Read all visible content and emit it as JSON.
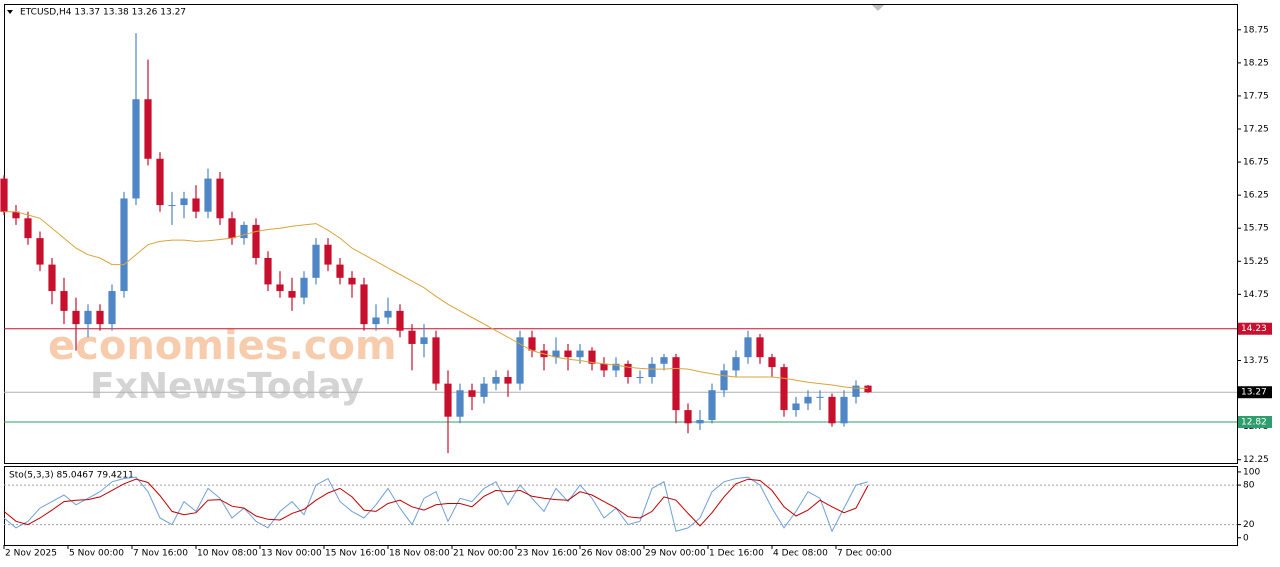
{
  "chart_data": [
    {
      "type": "candlestick",
      "title": "ETCUSD,H4  13.37 13.38 13.26 13.27",
      "x": [
        0,
        3,
        6,
        9,
        12,
        15,
        18,
        21,
        24,
        27,
        30,
        33,
        36,
        39,
        42,
        45,
        48,
        51,
        54,
        57,
        60,
        63,
        66,
        69,
        72,
        75,
        78,
        81,
        84,
        87,
        90,
        93,
        96,
        99,
        102,
        105,
        108,
        111,
        114,
        117,
        120,
        123,
        126,
        129,
        132,
        135,
        138,
        141,
        144,
        147,
        150,
        153,
        156,
        159,
        162,
        165,
        168,
        171,
        174,
        177,
        180,
        183,
        186,
        189,
        192,
        195,
        198,
        201,
        204,
        207,
        210,
        213,
        216
      ],
      "open": [
        16.5,
        16.0,
        15.9,
        15.6,
        15.2,
        14.8,
        14.5,
        14.3,
        14.5,
        14.3,
        14.8,
        16.2,
        17.7,
        16.8,
        16.1,
        16.1,
        16.2,
        16.0,
        16.5,
        15.9,
        15.6,
        15.8,
        15.3,
        14.9,
        14.8,
        14.7,
        15.0,
        15.5,
        15.2,
        15.0,
        14.9,
        14.3,
        14.4,
        14.5,
        14.2,
        14.0,
        14.1,
        13.4,
        12.9,
        13.3,
        13.2,
        13.4,
        13.5,
        13.4,
        14.1,
        13.9,
        13.8,
        13.9,
        13.8,
        13.9,
        13.7,
        13.6,
        13.7,
        13.5,
        13.5,
        13.7,
        13.8,
        13.0,
        12.8,
        12.85,
        13.3,
        13.6,
        13.8,
        14.1,
        13.8,
        13.65,
        13.0,
        13.1,
        13.2,
        13.2,
        12.8,
        13.2,
        13.37
      ],
      "high": [
        16.55,
        16.1,
        16.0,
        15.7,
        15.3,
        15.0,
        14.7,
        14.6,
        14.6,
        14.9,
        16.3,
        18.7,
        18.3,
        16.9,
        16.3,
        16.3,
        16.4,
        16.65,
        16.6,
        16.0,
        15.85,
        15.9,
        15.4,
        15.1,
        15.0,
        15.1,
        15.6,
        15.6,
        15.3,
        15.1,
        15.0,
        14.6,
        14.7,
        14.6,
        14.3,
        14.3,
        14.2,
        13.6,
        13.4,
        13.4,
        13.5,
        13.6,
        13.6,
        14.2,
        14.2,
        14.0,
        14.1,
        14.0,
        14.0,
        13.95,
        13.8,
        13.8,
        13.75,
        13.6,
        13.8,
        13.85,
        13.85,
        13.1,
        13.0,
        13.4,
        13.7,
        13.9,
        14.2,
        14.15,
        13.85,
        13.7,
        13.2,
        13.3,
        13.3,
        13.25,
        13.3,
        13.45,
        13.38
      ],
      "low": [
        15.95,
        15.8,
        15.5,
        15.1,
        14.6,
        14.3,
        13.9,
        14.1,
        14.2,
        14.2,
        14.7,
        16.1,
        16.7,
        16.0,
        15.8,
        15.9,
        15.9,
        15.9,
        15.8,
        15.5,
        15.5,
        15.2,
        14.8,
        14.7,
        14.5,
        14.6,
        14.9,
        15.1,
        14.9,
        14.7,
        14.2,
        14.2,
        14.3,
        14.1,
        13.6,
        13.8,
        13.3,
        12.35,
        12.8,
        13.0,
        13.1,
        13.3,
        13.2,
        13.3,
        13.8,
        13.6,
        13.7,
        13.6,
        13.7,
        13.6,
        13.5,
        13.5,
        13.4,
        13.4,
        13.4,
        13.6,
        12.8,
        12.65,
        12.7,
        12.8,
        13.2,
        13.5,
        13.7,
        13.7,
        13.5,
        12.9,
        12.9,
        13.0,
        13.0,
        12.75,
        12.75,
        13.1,
        13.26
      ],
      "close": [
        16.0,
        15.9,
        15.6,
        15.2,
        14.8,
        14.5,
        14.3,
        14.5,
        14.3,
        14.8,
        16.2,
        17.7,
        16.8,
        16.1,
        16.1,
        16.2,
        16.0,
        16.5,
        15.9,
        15.6,
        15.8,
        15.3,
        14.9,
        14.8,
        14.7,
        15.0,
        15.5,
        15.2,
        15.0,
        14.9,
        14.3,
        14.4,
        14.5,
        14.2,
        14.0,
        14.1,
        13.4,
        12.9,
        13.3,
        13.2,
        13.4,
        13.5,
        13.4,
        14.1,
        13.9,
        13.8,
        13.9,
        13.8,
        13.9,
        13.7,
        13.6,
        13.7,
        13.5,
        13.5,
        13.7,
        13.8,
        13.0,
        12.8,
        12.85,
        13.3,
        13.6,
        13.8,
        14.1,
        13.8,
        13.65,
        13.0,
        13.1,
        13.2,
        13.2,
        12.8,
        13.2,
        13.37,
        13.27
      ],
      "up_color": "#4f86c6",
      "down_color": "#c8102e",
      "ma": {
        "color": "#d9a53a",
        "values": [
          16.0,
          16.0,
          15.95,
          15.9,
          15.75,
          15.6,
          15.45,
          15.35,
          15.3,
          15.2,
          15.2,
          15.35,
          15.5,
          15.55,
          15.57,
          15.57,
          15.55,
          15.56,
          15.58,
          15.6,
          15.65,
          15.7,
          15.73,
          15.75,
          15.78,
          15.8,
          15.82,
          15.72,
          15.6,
          15.45,
          15.35,
          15.25,
          15.15,
          15.05,
          14.95,
          14.85,
          14.72,
          14.6,
          14.5,
          14.4,
          14.3,
          14.2,
          14.1,
          14.0,
          13.9,
          13.85,
          13.8,
          13.77,
          13.75,
          13.72,
          13.7,
          13.68,
          13.65,
          13.63,
          13.62,
          13.62,
          13.63,
          13.62,
          13.58,
          13.55,
          13.52,
          13.5,
          13.5,
          13.5,
          13.5,
          13.48,
          13.45,
          13.42,
          13.4,
          13.38,
          13.35,
          13.33,
          13.33
        ]
      },
      "levels": [
        {
          "value": 14.23,
          "color": "#c8102e",
          "label_color": "#c8102e"
        },
        {
          "value": 13.27,
          "color": "#b0b0b0",
          "label_color": "#000000"
        },
        {
          "value": 12.82,
          "color": "#2e9e6e",
          "label_color": "#2e9e6e"
        }
      ],
      "xlim": [
        0,
        308.25
      ],
      "ylim": [
        12.2,
        19.14
      ],
      "yticks": [
        18.75,
        18.25,
        17.75,
        17.25,
        16.75,
        16.25,
        15.75,
        15.25,
        14.75,
        13.75,
        12.75,
        12.25
      ],
      "xticks": [
        {
          "value": 0,
          "label": "2 Nov 2025"
        },
        {
          "value": 16,
          "label": "5 Nov 00:00"
        },
        {
          "value": 32,
          "label": "7 Nov 16:00"
        },
        {
          "value": 48,
          "label": "10 Nov 08:00"
        },
        {
          "value": 64,
          "label": "13 Nov 00:00"
        },
        {
          "value": 80,
          "label": "15 Nov 16:00"
        },
        {
          "value": 96,
          "label": "18 Nov 08:00"
        },
        {
          "value": 112,
          "label": "21 Nov 00:00"
        },
        {
          "value": 128,
          "label": "23 Nov 16:00"
        },
        {
          "value": 144,
          "label": "26 Nov 08:00"
        },
        {
          "value": 160,
          "label": "29 Nov 00:00"
        },
        {
          "value": 176,
          "label": "1 Dec 16:00"
        },
        {
          "value": 192,
          "label": "4 Dec 08:00"
        },
        {
          "value": 208,
          "label": "7 Dec 00:00"
        }
      ],
      "watermarks": [
        "economies.com",
        "FxNewsToday"
      ]
    },
    {
      "type": "line",
      "title": "Sto(5,3,3) 85.0467 79.4211",
      "x": [
        0,
        3,
        6,
        9,
        12,
        15,
        18,
        21,
        24,
        27,
        30,
        33,
        36,
        39,
        42,
        45,
        48,
        51,
        54,
        57,
        60,
        63,
        66,
        69,
        72,
        75,
        78,
        81,
        84,
        87,
        90,
        93,
        96,
        99,
        102,
        105,
        108,
        111,
        114,
        117,
        120,
        123,
        126,
        129,
        132,
        135,
        138,
        141,
        144,
        147,
        150,
        153,
        156,
        159,
        162,
        165,
        168,
        171,
        174,
        177,
        180,
        183,
        186,
        189,
        192,
        195,
        198,
        201,
        204,
        207,
        210,
        213,
        216
      ],
      "series": [
        {
          "color": "#6fa0d8",
          "values": [
            30,
            15,
            25,
            45,
            55,
            65,
            50,
            60,
            70,
            85,
            90,
            92,
            70,
            30,
            20,
            55,
            40,
            75,
            60,
            30,
            45,
            25,
            15,
            40,
            55,
            35,
            80,
            90,
            55,
            40,
            30,
            50,
            75,
            45,
            20,
            60,
            70,
            25,
            60,
            55,
            75,
            85,
            50,
            80,
            60,
            40,
            75,
            55,
            80,
            60,
            30,
            45,
            20,
            25,
            75,
            85,
            10,
            15,
            30,
            70,
            85,
            90,
            92,
            80,
            45,
            15,
            40,
            70,
            60,
            10,
            45,
            80,
            85.0467
          ]
        },
        {
          "color": "#c00000",
          "values": [
            40,
            25,
            20,
            30,
            42,
            55,
            57,
            58,
            62,
            72,
            82,
            89,
            84,
            64,
            40,
            35,
            38,
            57,
            58,
            48,
            45,
            33,
            28,
            27,
            37,
            43,
            57,
            68,
            75,
            62,
            42,
            40,
            52,
            57,
            47,
            42,
            50,
            52,
            52,
            47,
            63,
            72,
            70,
            72,
            63,
            60,
            58,
            57,
            70,
            65,
            55,
            45,
            32,
            30,
            40,
            62,
            57,
            37,
            18,
            38,
            62,
            82,
            89,
            87,
            72,
            47,
            33,
            42,
            57,
            47,
            38,
            45,
            79.4211
          ]
        }
      ],
      "xlim": [
        0,
        308.25
      ],
      "ylim": [
        -11,
        109
      ],
      "yticks": [
        100,
        80,
        20,
        0
      ],
      "levels": [
        80,
        20
      ]
    }
  ]
}
